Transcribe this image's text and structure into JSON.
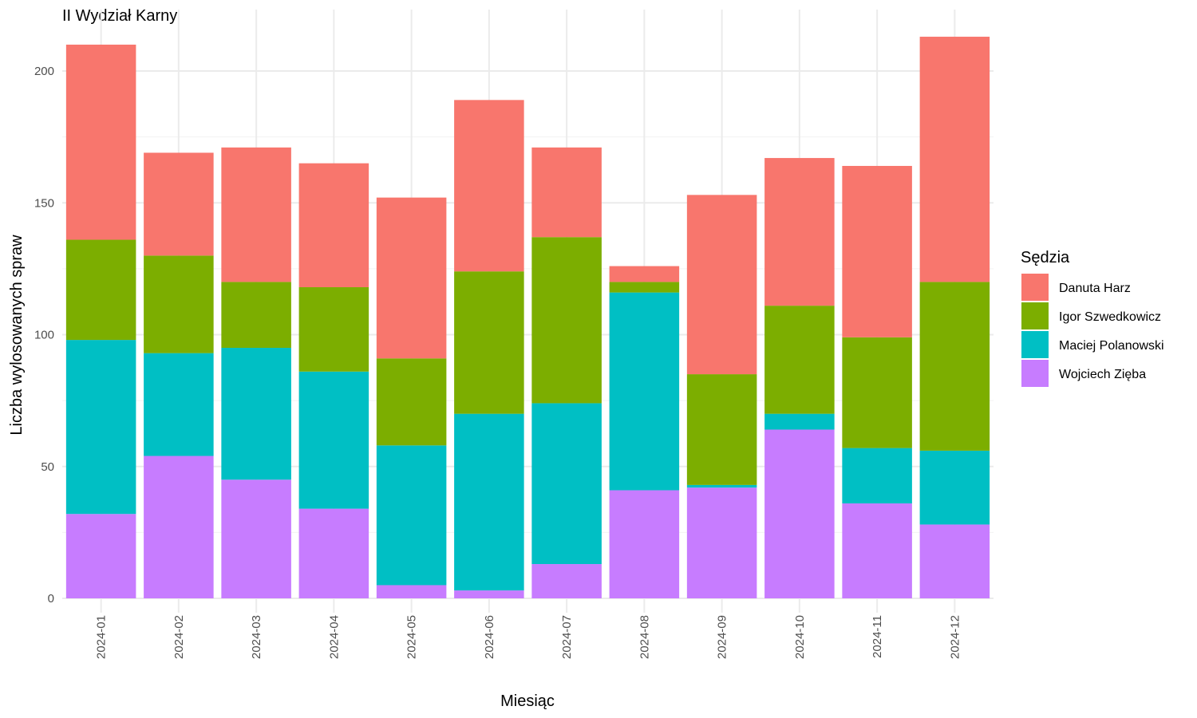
{
  "chart_data": {
    "type": "bar",
    "stacked": true,
    "title": "II Wydział Karny",
    "xlabel": "Miesiąc",
    "ylabel": "Liczba wylosowanych spraw",
    "ylim": [
      0,
      220
    ],
    "yticks": [
      0,
      50,
      100,
      150,
      200
    ],
    "grid": true,
    "legend_title": "Sędzia",
    "legend_position": "right",
    "categories": [
      "2024-01",
      "2024-02",
      "2024-03",
      "2024-04",
      "2024-05",
      "2024-06",
      "2024-07",
      "2024-08",
      "2024-09",
      "2024-10",
      "2024-11",
      "2024-12"
    ],
    "series": [
      {
        "name": "Danuta Harz",
        "color": "#F8766D",
        "values": [
          74,
          39,
          51,
          47,
          61,
          65,
          34,
          6,
          68,
          56,
          65,
          93
        ]
      },
      {
        "name": "Igor Szwedkowicz",
        "color": "#7CAE00",
        "values": [
          38,
          37,
          25,
          32,
          33,
          54,
          63,
          4,
          42,
          41,
          42,
          64
        ]
      },
      {
        "name": "Maciej Polanowski",
        "color": "#00BFC4",
        "values": [
          66,
          39,
          50,
          52,
          53,
          67,
          61,
          75,
          1,
          6,
          21,
          28
        ]
      },
      {
        "name": "Wojciech Zięba",
        "color": "#C77CFF",
        "values": [
          32,
          54,
          45,
          34,
          5,
          3,
          13,
          41,
          42,
          64,
          36,
          28
        ]
      }
    ]
  }
}
